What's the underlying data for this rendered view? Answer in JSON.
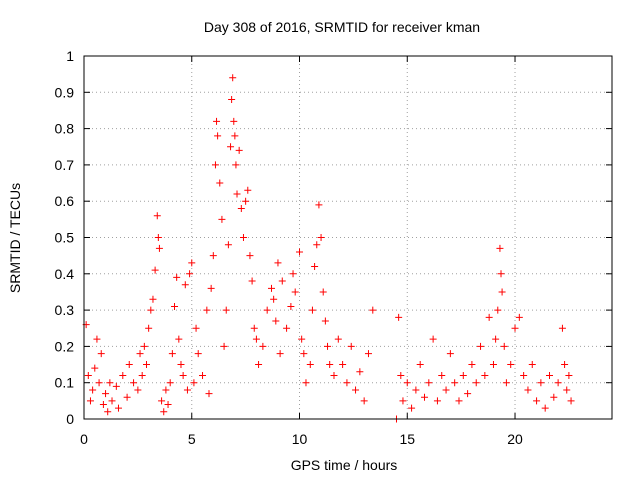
{
  "chart_data": {
    "type": "scatter",
    "title": "Day 308 of 2016, SRMTID for receiver kman",
    "xlabel": "GPS time / hours",
    "ylabel": "SRMTID / TECUs",
    "xlim": [
      0,
      24.5
    ],
    "ylim": [
      0,
      1
    ],
    "xticks": [
      0,
      5,
      10,
      15,
      20
    ],
    "xtick_labels": [
      "0",
      "5",
      "10",
      "15",
      "20"
    ],
    "yticks": [
      0,
      0.1,
      0.2,
      0.3,
      0.4,
      0.5,
      0.6,
      0.7,
      0.8,
      0.9,
      1
    ],
    "ytick_labels": [
      "0",
      "0.1",
      "0.2",
      "0.3",
      "0.4",
      "0.5",
      "0.6",
      "0.7",
      "0.8",
      "0.9",
      "1"
    ],
    "grid": true,
    "marker": "+",
    "color": "#ff0000",
    "series": [
      {
        "name": "SRMTID",
        "points": [
          [
            0.1,
            0.26
          ],
          [
            0.2,
            0.12
          ],
          [
            0.3,
            0.05
          ],
          [
            0.4,
            0.08
          ],
          [
            0.5,
            0.14
          ],
          [
            0.6,
            0.22
          ],
          [
            0.7,
            0.1
          ],
          [
            0.8,
            0.18
          ],
          [
            0.9,
            0.04
          ],
          [
            1.0,
            0.07
          ],
          [
            1.1,
            0.02
          ],
          [
            1.2,
            0.1
          ],
          [
            1.3,
            0.05
          ],
          [
            1.5,
            0.09
          ],
          [
            1.6,
            0.03
          ],
          [
            1.8,
            0.12
          ],
          [
            2.0,
            0.06
          ],
          [
            2.1,
            0.15
          ],
          [
            2.3,
            0.1
          ],
          [
            2.5,
            0.08
          ],
          [
            2.6,
            0.18
          ],
          [
            2.7,
            0.12
          ],
          [
            2.8,
            0.2
          ],
          [
            2.9,
            0.15
          ],
          [
            3.0,
            0.25
          ],
          [
            3.1,
            0.3
          ],
          [
            3.2,
            0.33
          ],
          [
            3.3,
            0.41
          ],
          [
            3.4,
            0.56
          ],
          [
            3.45,
            0.5
          ],
          [
            3.5,
            0.47
          ],
          [
            3.6,
            0.05
          ],
          [
            3.7,
            0.02
          ],
          [
            3.8,
            0.08
          ],
          [
            3.9,
            0.04
          ],
          [
            4.0,
            0.1
          ],
          [
            4.1,
            0.18
          ],
          [
            4.2,
            0.31
          ],
          [
            4.3,
            0.39
          ],
          [
            4.4,
            0.22
          ],
          [
            4.5,
            0.15
          ],
          [
            4.6,
            0.12
          ],
          [
            4.7,
            0.37
          ],
          [
            4.8,
            0.08
          ],
          [
            4.9,
            0.4
          ],
          [
            5.0,
            0.43
          ],
          [
            5.1,
            0.1
          ],
          [
            5.2,
            0.25
          ],
          [
            5.3,
            0.18
          ],
          [
            5.5,
            0.12
          ],
          [
            5.7,
            0.3
          ],
          [
            5.8,
            0.07
          ],
          [
            5.9,
            0.36
          ],
          [
            6.0,
            0.45
          ],
          [
            6.1,
            0.7
          ],
          [
            6.15,
            0.82
          ],
          [
            6.2,
            0.78
          ],
          [
            6.3,
            0.65
          ],
          [
            6.4,
            0.55
          ],
          [
            6.5,
            0.2
          ],
          [
            6.6,
            0.3
          ],
          [
            6.7,
            0.48
          ],
          [
            6.8,
            0.75
          ],
          [
            6.85,
            0.88
          ],
          [
            6.9,
            0.94
          ],
          [
            6.95,
            0.82
          ],
          [
            7.0,
            0.78
          ],
          [
            7.05,
            0.7
          ],
          [
            7.1,
            0.62
          ],
          [
            7.2,
            0.74
          ],
          [
            7.3,
            0.58
          ],
          [
            7.4,
            0.5
          ],
          [
            7.5,
            0.6
          ],
          [
            7.6,
            0.63
          ],
          [
            7.7,
            0.45
          ],
          [
            7.8,
            0.38
          ],
          [
            7.9,
            0.25
          ],
          [
            8.0,
            0.22
          ],
          [
            8.1,
            0.15
          ],
          [
            8.3,
            0.2
          ],
          [
            8.5,
            0.3
          ],
          [
            8.7,
            0.36
          ],
          [
            8.8,
            0.33
          ],
          [
            8.9,
            0.27
          ],
          [
            9.0,
            0.43
          ],
          [
            9.1,
            0.18
          ],
          [
            9.2,
            0.38
          ],
          [
            9.4,
            0.25
          ],
          [
            9.6,
            0.31
          ],
          [
            9.7,
            0.4
          ],
          [
            9.8,
            0.35
          ],
          [
            10.0,
            0.46
          ],
          [
            10.1,
            0.22
          ],
          [
            10.2,
            0.18
          ],
          [
            10.3,
            0.1
          ],
          [
            10.5,
            0.15
          ],
          [
            10.6,
            0.3
          ],
          [
            10.7,
            0.42
          ],
          [
            10.8,
            0.48
          ],
          [
            10.9,
            0.59
          ],
          [
            11.0,
            0.5
          ],
          [
            11.1,
            0.35
          ],
          [
            11.2,
            0.27
          ],
          [
            11.3,
            0.2
          ],
          [
            11.4,
            0.15
          ],
          [
            11.6,
            0.12
          ],
          [
            11.8,
            0.22
          ],
          [
            12.0,
            0.15
          ],
          [
            12.2,
            0.1
          ],
          [
            12.4,
            0.2
          ],
          [
            12.6,
            0.08
          ],
          [
            12.8,
            0.13
          ],
          [
            13.0,
            0.05
          ],
          [
            13.2,
            0.18
          ],
          [
            13.4,
            0.3
          ],
          [
            14.5,
            0.0
          ],
          [
            14.6,
            0.28
          ],
          [
            14.7,
            0.12
          ],
          [
            14.8,
            0.05
          ],
          [
            15.0,
            0.1
          ],
          [
            15.2,
            0.03
          ],
          [
            15.4,
            0.08
          ],
          [
            15.6,
            0.15
          ],
          [
            15.8,
            0.06
          ],
          [
            16.0,
            0.1
          ],
          [
            16.2,
            0.22
          ],
          [
            16.4,
            0.05
          ],
          [
            16.6,
            0.12
          ],
          [
            16.8,
            0.08
          ],
          [
            17.0,
            0.18
          ],
          [
            17.2,
            0.1
          ],
          [
            17.4,
            0.05
          ],
          [
            17.6,
            0.12
          ],
          [
            17.8,
            0.07
          ],
          [
            18.0,
            0.15
          ],
          [
            18.2,
            0.1
          ],
          [
            18.4,
            0.2
          ],
          [
            18.6,
            0.12
          ],
          [
            18.8,
            0.28
          ],
          [
            19.0,
            0.15
          ],
          [
            19.1,
            0.22
          ],
          [
            19.2,
            0.3
          ],
          [
            19.3,
            0.47
          ],
          [
            19.35,
            0.4
          ],
          [
            19.4,
            0.35
          ],
          [
            19.5,
            0.2
          ],
          [
            19.6,
            0.1
          ],
          [
            19.8,
            0.15
          ],
          [
            20.0,
            0.25
          ],
          [
            20.2,
            0.28
          ],
          [
            20.4,
            0.12
          ],
          [
            20.6,
            0.08
          ],
          [
            20.8,
            0.15
          ],
          [
            21.0,
            0.05
          ],
          [
            21.2,
            0.1
          ],
          [
            21.4,
            0.03
          ],
          [
            21.6,
            0.12
          ],
          [
            21.8,
            0.06
          ],
          [
            22.0,
            0.1
          ],
          [
            22.2,
            0.25
          ],
          [
            22.3,
            0.15
          ],
          [
            22.4,
            0.08
          ],
          [
            22.5,
            0.12
          ],
          [
            22.6,
            0.05
          ]
        ]
      }
    ]
  }
}
